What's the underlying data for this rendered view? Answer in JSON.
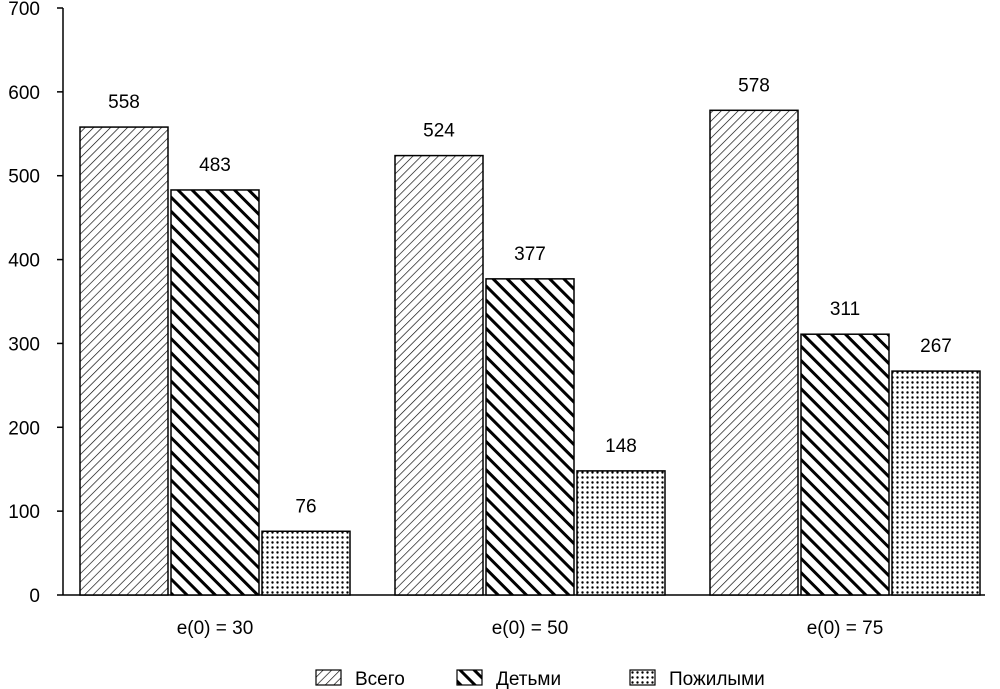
{
  "chart_data": {
    "type": "bar",
    "categories": [
      "e(0) = 30",
      "e(0) = 50",
      "e(0) = 75"
    ],
    "series": [
      {
        "name": "Всего",
        "values": [
          558,
          524,
          578
        ],
        "pattern": "light-diagonal"
      },
      {
        "name": "Детьми",
        "values": [
          483,
          377,
          311
        ],
        "pattern": "bold-diagonal"
      },
      {
        "name": "Пожилыми",
        "values": [
          76,
          148,
          267
        ],
        "pattern": "dots"
      }
    ],
    "title": "",
    "xlabel": "",
    "ylabel": "",
    "ylim": [
      0,
      700
    ],
    "yticks": [
      0,
      100,
      200,
      300,
      400,
      500,
      600,
      700
    ],
    "grid": false,
    "legend_position": "bottom-center",
    "colors": {
      "stroke": "#000000",
      "fill": "#ffffff"
    }
  }
}
